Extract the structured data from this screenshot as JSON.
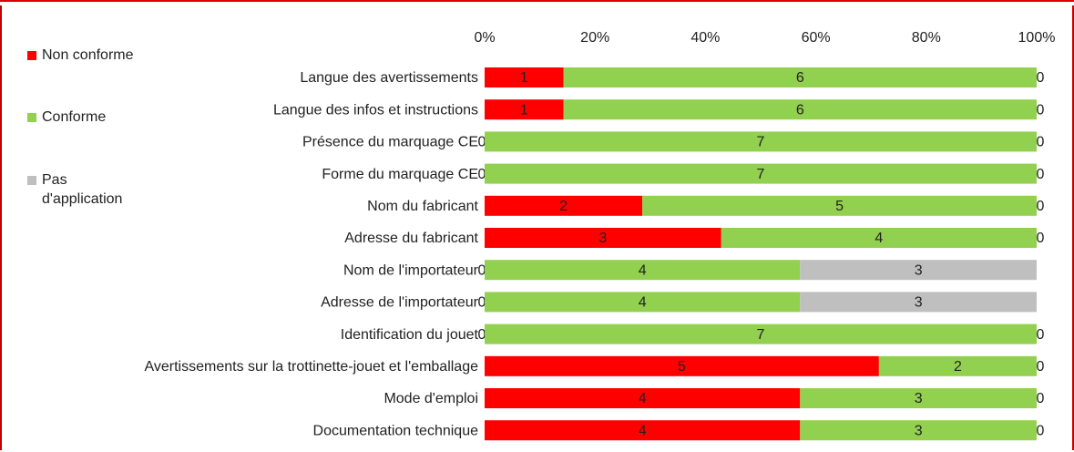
{
  "chart_data": {
    "type": "bar",
    "orientation": "horizontal",
    "stacked": "percent",
    "categories": [
      "Langue des avertissements",
      "Langue des infos et instructions",
      "Présence du marquage CE",
      "Forme du marquage CE",
      "Nom du fabricant",
      "Adresse du fabricant",
      "Nom de l'importateur",
      "Adresse de l'importateur",
      "Identification du jouet",
      "Avertissements sur la trottinette-jouet et l'emballage",
      "Mode d'emploi",
      "Documentation technique"
    ],
    "series": [
      {
        "name": "Non conforme",
        "color": "#ff0000",
        "values": [
          1,
          1,
          0,
          0,
          2,
          3,
          0,
          0,
          0,
          5,
          4,
          4
        ]
      },
      {
        "name": "Conforme",
        "color": "#92d050",
        "values": [
          6,
          6,
          7,
          7,
          5,
          4,
          4,
          4,
          7,
          2,
          3,
          3
        ]
      },
      {
        "name": "Pas d'application",
        "color": "#bfbfbf",
        "values": [
          0,
          0,
          0,
          0,
          0,
          0,
          3,
          3,
          0,
          0,
          0,
          0
        ]
      }
    ],
    "xlim": [
      0,
      100
    ],
    "xticks": [
      {
        "value": 0,
        "label": "0%"
      },
      {
        "value": 20,
        "label": "20%"
      },
      {
        "value": 40,
        "label": "40%"
      },
      {
        "value": 60,
        "label": "60%"
      },
      {
        "value": 80,
        "label": "80%"
      },
      {
        "value": 100,
        "label": "100%"
      }
    ],
    "legend": "left"
  }
}
